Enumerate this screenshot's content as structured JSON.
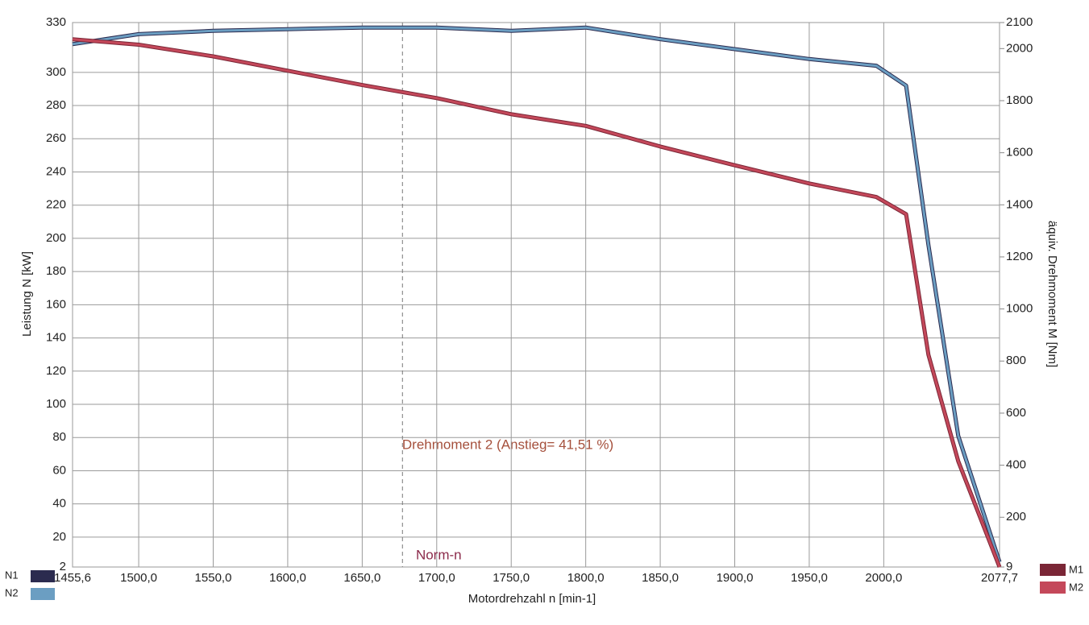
{
  "chart_data": {
    "type": "line",
    "x_label": "Motordrehzahl n [min-1]",
    "y_label": "Leistung N [kW]",
    "y2_label": "äquiv. Drehmoment M [Nm]",
    "x": [
      1455.6,
      1500,
      1550,
      1600,
      1650,
      1700,
      1750,
      1800,
      1850,
      1900,
      1950,
      1995,
      2015,
      2030,
      2050,
      2077.7
    ],
    "series": [
      {
        "name": "N1",
        "color": "#2b2b4f",
        "axis": "y",
        "values": [
          317,
          323,
          325,
          326,
          327,
          327,
          325,
          327,
          320,
          314,
          308,
          304,
          292,
          196,
          81,
          5
        ]
      },
      {
        "name": "N2",
        "color": "#6b9ec2",
        "axis": "y",
        "values": [
          317,
          323,
          325,
          326,
          327,
          327,
          325,
          327,
          320,
          314,
          308,
          304,
          292,
          196,
          81,
          5
        ]
      },
      {
        "name": "M1",
        "color": "#7a2636",
        "axis": "y2",
        "values": [
          2036,
          2015,
          1970,
          1915,
          1860,
          1810,
          1748,
          1703,
          1624,
          1552,
          1482,
          1430,
          1364,
          824,
          415,
          9
        ]
      },
      {
        "name": "M2",
        "color": "#c4485a",
        "axis": "y2",
        "values": [
          2036,
          2015,
          1970,
          1915,
          1860,
          1810,
          1748,
          1703,
          1624,
          1552,
          1482,
          1430,
          1364,
          824,
          415,
          9
        ]
      }
    ],
    "xlim": [
      1455.6,
      2077.7
    ],
    "xticks": [
      {
        "value": 1455.6,
        "label": "1455,6"
      },
      {
        "value": 1500,
        "label": "1500,0"
      },
      {
        "value": 1550,
        "label": "1550,0"
      },
      {
        "value": 1600,
        "label": "1600,0"
      },
      {
        "value": 1650,
        "label": "1650,0"
      },
      {
        "value": 1700,
        "label": "1700,0"
      },
      {
        "value": 1750,
        "label": "1750,0"
      },
      {
        "value": 1800,
        "label": "1800,0"
      },
      {
        "value": 1850,
        "label": "1850,0"
      },
      {
        "value": 1900,
        "label": "1900,0"
      },
      {
        "value": 1950,
        "label": "1950,0"
      },
      {
        "value": 2000,
        "label": "2000,0"
      },
      {
        "value": 2077.7,
        "label": "2077,7"
      }
    ],
    "ylim": [
      2,
      330
    ],
    "yticks": [
      2,
      20,
      40,
      60,
      80,
      100,
      120,
      140,
      160,
      180,
      200,
      220,
      240,
      260,
      280,
      300,
      330
    ],
    "y2lim": [
      9,
      2100
    ],
    "y2ticks": [
      9,
      200,
      400,
      600,
      800,
      1000,
      1200,
      1400,
      1600,
      1800,
      2000,
      2100
    ],
    "grid": true,
    "annotations": [
      {
        "text": "Drehmoment 2 (Anstieg= 41,51 %)"
      },
      {
        "text": "Norm-n",
        "x": 1677
      }
    ]
  }
}
